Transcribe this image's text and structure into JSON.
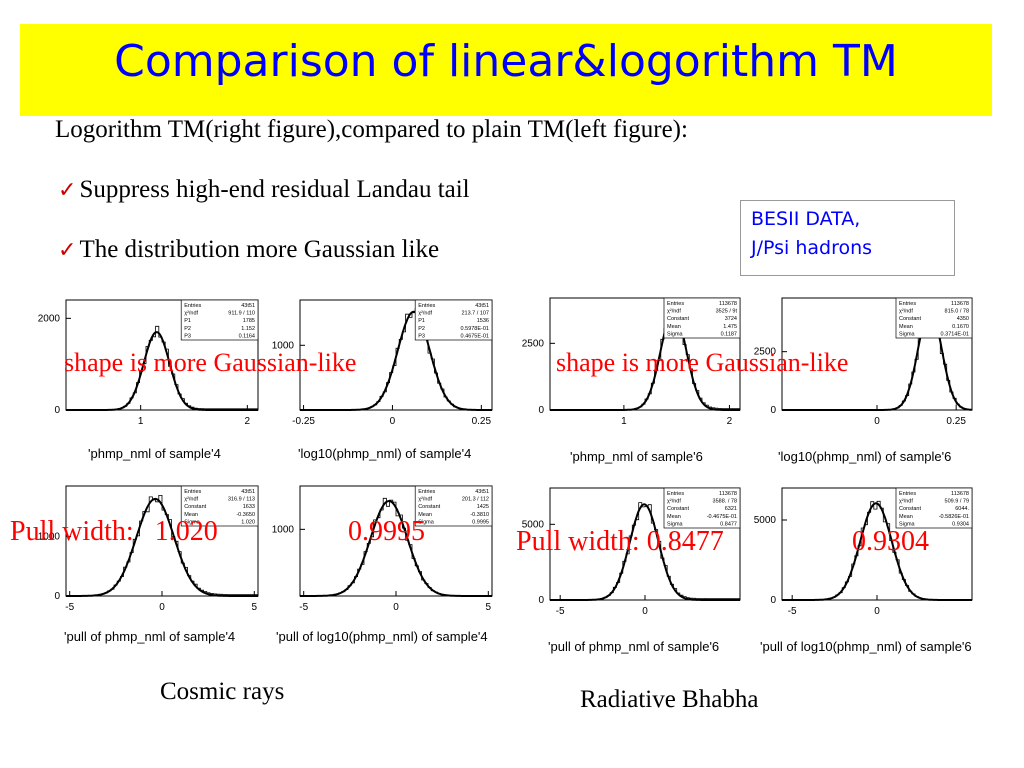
{
  "slide": {
    "title": "Comparison of linear&logorithm TM",
    "intro": "Logorithm TM(right figure),compared to plain TM(left figure):",
    "bullets": [
      "Suppress high-end residual Landau tail",
      "The distribution more Gaussian like"
    ],
    "data_box": {
      "line1": "BESII DATA,",
      "line2": "J/Psi hadrons"
    },
    "overlays": {
      "shape_left": "shape is more Gaussian-like",
      "shape_right": "shape is more Gaussian-like",
      "pull_left": "Pull width:   1.020",
      "pull_left_log": "0.9995",
      "pull_right": "Pull width: 0.8477",
      "pull_right_log": "0.9304"
    },
    "footers": {
      "left": "Cosmic rays",
      "right": "Radiative Bhabha"
    },
    "colors": {
      "title_bg": "#ffff00",
      "title_text": "#0000ff",
      "overlay_text": "#ff0000",
      "check": "#cc0000",
      "box_text": "#0000ff"
    }
  },
  "chart_data": [
    {
      "type": "line",
      "caption": "'phmp_nml of sample'4",
      "xticks": [
        "1",
        "2"
      ],
      "yticks": [
        "0",
        "2000"
      ],
      "xlim": [
        0.3,
        2.1
      ],
      "ylim": [
        0,
        2400
      ],
      "peak_x": 1.15,
      "sigma": 0.12,
      "peak_y": 1700,
      "stats": [
        [
          "Entries",
          "43t51"
        ],
        [
          "χ²/ndf",
          "911.9 / 110"
        ],
        [
          "P1",
          "1785"
        ],
        [
          "P2",
          "1.152"
        ],
        [
          "P3",
          "0.1164"
        ]
      ]
    },
    {
      "type": "line",
      "caption": "'log10(phmp_nml) of sample'4",
      "xticks": [
        "-0.25",
        "0",
        "0.25"
      ],
      "yticks": [
        "1000"
      ],
      "xlim": [
        -0.26,
        0.28
      ],
      "ylim": [
        0,
        1700
      ],
      "peak_x": 0.06,
      "sigma": 0.045,
      "peak_y": 1520,
      "stats": [
        [
          "Entries",
          "43t51"
        ],
        [
          "χ²/ndf",
          "213.7 / 107"
        ],
        [
          "P1",
          "1536"
        ],
        [
          "P2",
          "0.5978E-01"
        ],
        [
          "P3",
          "0.4675E-01"
        ]
      ]
    },
    {
      "type": "line",
      "caption": "'phmp_nml of sample'6",
      "xticks": [
        "1",
        "2"
      ],
      "yticks": [
        "0",
        "2500"
      ],
      "xlim": [
        0.3,
        2.1
      ],
      "ylim": [
        0,
        4200
      ],
      "peak_x": 1.47,
      "sigma": 0.12,
      "peak_y": 3724,
      "stats": [
        [
          "Entries",
          "113678"
        ],
        [
          "χ²/ndf",
          "3525 / 9t"
        ],
        [
          "Constant",
          "3724"
        ],
        [
          "Mean",
          "1.475"
        ],
        [
          "Sigma",
          "0.1187"
        ]
      ]
    },
    {
      "type": "line",
      "caption": "'log10(phmp_nml) of sample'6",
      "xticks": [
        "0",
        "0.25"
      ],
      "yticks": [
        "0",
        "2500"
      ],
      "xlim": [
        -0.3,
        0.3
      ],
      "ylim": [
        0,
        4800
      ],
      "peak_x": 0.167,
      "sigma": 0.037,
      "peak_y": 4350,
      "stats": [
        [
          "Entries",
          "113678"
        ],
        [
          "χ²/ndf",
          "815.0 / 78"
        ],
        [
          "Constant",
          "4350"
        ],
        [
          "Mean",
          "0.1670"
        ],
        [
          "Sigma",
          "0.3714E-01"
        ]
      ]
    },
    {
      "type": "line",
      "caption": "'pull of phmp_nml of sample'4",
      "xticks": [
        "-5",
        "0",
        "5"
      ],
      "yticks": [
        "0",
        "1000"
      ],
      "xlim": [
        -5.2,
        5.2
      ],
      "ylim": [
        0,
        1850
      ],
      "peak_x": -0.365,
      "sigma": 1.02,
      "peak_y": 1633,
      "stats": [
        [
          "Entries",
          "43t51"
        ],
        [
          "χ²/ndf",
          "316.9 / 113"
        ],
        [
          "Constant",
          "1633"
        ],
        [
          "Mean",
          "-0.3650"
        ],
        [
          "Sigma",
          "1.020"
        ]
      ]
    },
    {
      "type": "line",
      "caption": "'pull of log10(phmp_nml) of sample'4",
      "xticks": [
        "-5",
        "0",
        "5"
      ],
      "yticks": [
        "1000"
      ],
      "xlim": [
        -5.2,
        5.2
      ],
      "ylim": [
        0,
        1650
      ],
      "peak_x": -0.381,
      "sigma": 0.9995,
      "peak_y": 1425,
      "stats": [
        [
          "Entries",
          "43t51"
        ],
        [
          "χ²/ndf",
          "201.3 / 112"
        ],
        [
          "Constant",
          "1425"
        ],
        [
          "Mean",
          "-0.3810"
        ],
        [
          "Sigma",
          "0.9995"
        ]
      ]
    },
    {
      "type": "line",
      "caption": "'pull of phmp_nml of sample'6",
      "xticks": [
        "-5",
        "0"
      ],
      "yticks": [
        "0",
        "5000"
      ],
      "xlim": [
        -5.6,
        5.6
      ],
      "ylim": [
        0,
        7400
      ],
      "peak_x": -0.047,
      "sigma": 0.8477,
      "peak_y": 6321,
      "stats": [
        [
          "Entries",
          "113678"
        ],
        [
          "χ²/ndf",
          "3588. / 78"
        ],
        [
          "Constant",
          "6321"
        ],
        [
          "Mean",
          "-0.4675E-01"
        ],
        [
          "Sigma",
          "0.8477"
        ]
      ]
    },
    {
      "type": "line",
      "caption": "'pull of log10(phmp_nml) of sample'6",
      "xticks": [
        "-5",
        "0"
      ],
      "yticks": [
        "0",
        "5000"
      ],
      "xlim": [
        -5.6,
        5.6
      ],
      "ylim": [
        0,
        7000
      ],
      "peak_x": -0.058,
      "sigma": 0.9304,
      "peak_y": 6044,
      "stats": [
        [
          "Entries",
          "113678"
        ],
        [
          "χ²/ndf",
          "509.9 / 79"
        ],
        [
          "Constant",
          "6044."
        ],
        [
          "Mean",
          "-0.5826E-01"
        ],
        [
          "Sigma",
          "0.9304"
        ]
      ]
    }
  ]
}
